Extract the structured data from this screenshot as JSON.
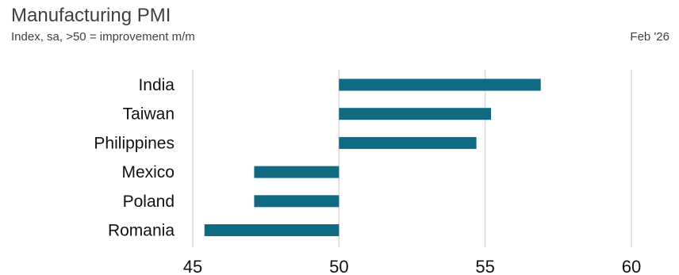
{
  "chart_data": {
    "type": "bar",
    "orientation": "horizontal",
    "title": "Manufacturing PMI",
    "subtitle": "Index, sa, >50 = improvement m/m",
    "date_label": "Feb '26",
    "categories": [
      "India",
      "Taiwan",
      "Philippines",
      "Mexico",
      "Poland",
      "Romania"
    ],
    "values": [
      56.9,
      55.2,
      54.7,
      47.1,
      47.1,
      45.4
    ],
    "baseline": 50,
    "xlim": [
      45,
      60
    ],
    "xticks": [
      "45",
      "50",
      "55",
      "60"
    ],
    "grid": true,
    "bar_color": "#0f6a82"
  }
}
